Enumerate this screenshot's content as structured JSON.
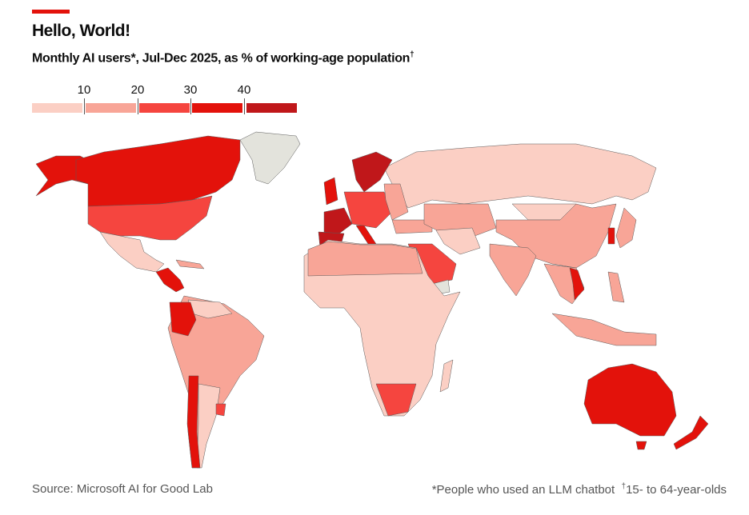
{
  "header": {
    "title": "Hello, World!",
    "subtitle": "Monthly AI users*, Jul-Dec 2025, as % of working-age population",
    "subtitle_mark": "†"
  },
  "legend": {
    "ticks": [
      "10",
      "20",
      "30",
      "40"
    ],
    "buckets": [
      {
        "range": [
          0,
          10
        ],
        "color": "#fbcfc4"
      },
      {
        "range": [
          10,
          20
        ],
        "color": "#f8a597"
      },
      {
        "range": [
          20,
          30
        ],
        "color": "#f5453f"
      },
      {
        "range": [
          30,
          40
        ],
        "color": "#e3120b"
      },
      {
        "range": [
          40,
          null
        ],
        "color": "#c0171a"
      }
    ],
    "no_data_color": "#e3e3dc"
  },
  "footer": {
    "source": "Source: Microsoft AI for Good Lab",
    "note1": "*People who used an LLM chatbot",
    "note2_mark": "†",
    "note2": "15- to 64-year-olds"
  },
  "accent": "#e3120b"
}
